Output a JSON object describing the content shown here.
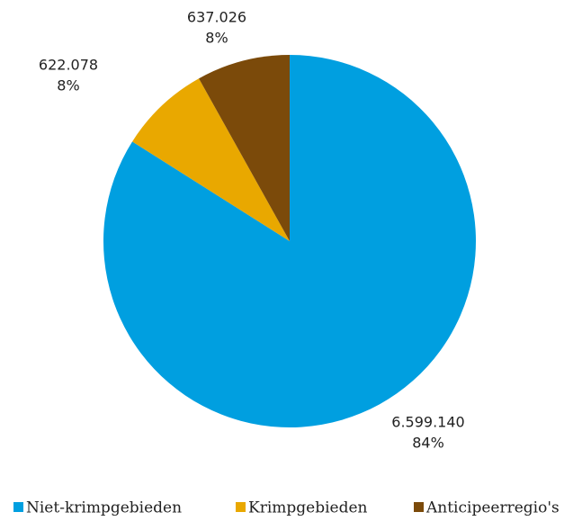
{
  "chart_data": {
    "type": "pie",
    "categories": [
      "Niet-krimpgebieden",
      "Krimpgebieden",
      "Anticipeerregio's"
    ],
    "values": [
      6599140,
      622078,
      637026
    ],
    "value_labels": [
      "6.599.140",
      "622.078",
      "637.026"
    ],
    "percentages": [
      84,
      8,
      8
    ],
    "percentage_labels": [
      "84%",
      "8%",
      "8%"
    ],
    "colors": [
      "#009fe0",
      "#e9a800",
      "#7b4a0a"
    ],
    "legend": "bottom"
  }
}
